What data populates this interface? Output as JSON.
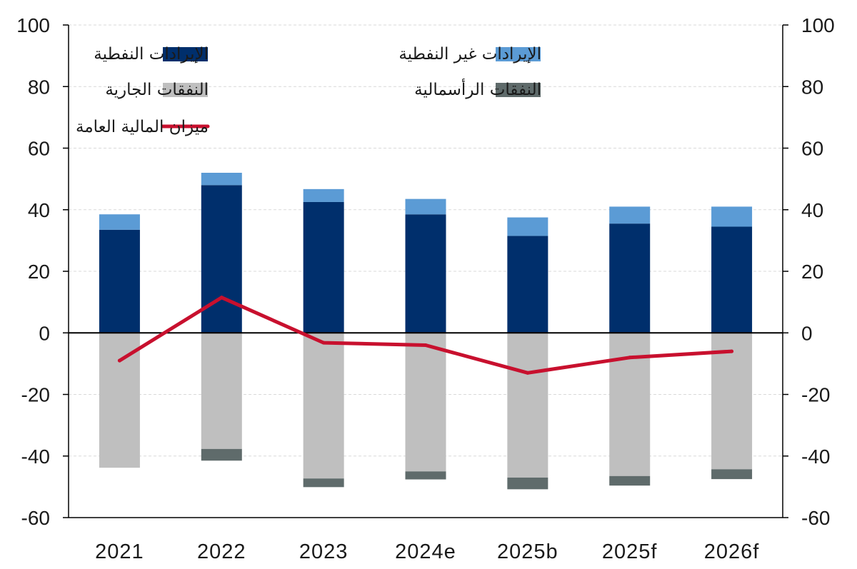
{
  "chart_data": {
    "type": "bar",
    "stacked": true,
    "categories": [
      "2021",
      "2022",
      "2023",
      "2024e",
      "2025b",
      "2025f",
      "2026f"
    ],
    "series": [
      {
        "name": "الإيرادات النفطية",
        "kind": "bar",
        "color": "#002F6C",
        "values": [
          33.5,
          48,
          42.5,
          38.5,
          31.5,
          35.5,
          34.5
        ]
      },
      {
        "name": "الإيرادات غير النفطية",
        "kind": "bar",
        "color": "#5B9BD5",
        "values": [
          5,
          4,
          4.2,
          5,
          6,
          5.5,
          6.5
        ]
      },
      {
        "name": "النفقات الجارية",
        "kind": "bar",
        "color": "#BFBFBF",
        "values": [
          -43.8,
          -37.7,
          -47.3,
          -45,
          -47,
          -46.5,
          -44.3
        ]
      },
      {
        "name": "النفقات الرأسمالية",
        "kind": "bar",
        "color": "#5F6B6B",
        "values": [
          0,
          -3.8,
          -2.8,
          -2.6,
          -3.8,
          -3.1,
          -3.2
        ]
      },
      {
        "name": "ميزان المالية العامة",
        "kind": "line",
        "color": "#C8102E",
        "values": [
          -9,
          11.5,
          -3.2,
          -4,
          -13,
          -8,
          -6
        ]
      }
    ],
    "ylim": [
      -60,
      100
    ],
    "yticks": [
      100,
      80,
      60,
      40,
      20,
      0,
      -20,
      -40,
      -60
    ],
    "ytick_labels": [
      "100",
      "80",
      "60",
      "40",
      "20",
      "0",
      "-20",
      "-40",
      "-60"
    ],
    "secondary_yticks": [
      100,
      80,
      60,
      40,
      20,
      0,
      -20,
      -40,
      -60
    ],
    "secondary_ytick_labels": [
      "100",
      "80",
      "60",
      "40",
      "20",
      "0",
      "-20",
      "-40",
      "-60"
    ],
    "grid": "horizontal",
    "legend_position": "top",
    "title": "",
    "xlabel": "",
    "ylabel": ""
  }
}
